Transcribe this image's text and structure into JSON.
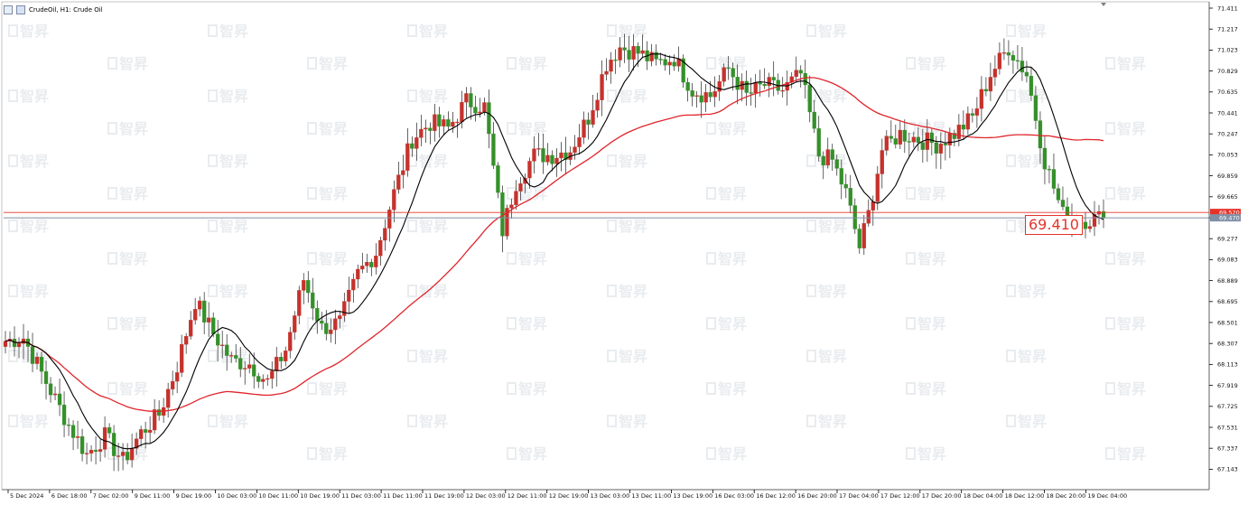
{
  "header": {
    "title": "CrudeOil, H1:  Crude Oil",
    "icons": [
      "chart-grid-icon",
      "chart-settings-icon"
    ]
  },
  "watermark": {
    "text": "智昇",
    "color": "#e9ecef"
  },
  "callout": {
    "text": "69.410",
    "color": "#e5332a"
  },
  "price_labels": {
    "ask": {
      "text": "69.520",
      "value": 69.52,
      "color": "#e5332a"
    },
    "bid": {
      "text": "69.470",
      "value": 69.47,
      "color": "#7f8fa6"
    }
  },
  "colors": {
    "bull": "#c5322c",
    "bear": "#35902a",
    "ma_fast": "#000000",
    "ma_slow": "#e0252c",
    "axis": "#000000"
  },
  "chart_data": {
    "type": "candlestick",
    "symbol": "CrudeOil",
    "timeframe": "H1",
    "y_ticks": [
      "71.411",
      "71.217",
      "71.023",
      "70.829",
      "70.635",
      "70.441",
      "70.247",
      "70.053",
      "69.859",
      "69.665",
      "69.471",
      "69.277",
      "69.083",
      "68.889",
      "68.695",
      "68.501",
      "68.307",
      "68.113",
      "67.919",
      "67.725",
      "67.531",
      "67.337",
      "67.143"
    ],
    "ylim": [
      67.09,
      71.45
    ],
    "x_labels": [
      "5 Dec 2024",
      "6 Dec 18:00",
      "7 Dec 02:00",
      "9 Dec 11:00",
      "9 Dec 19:00",
      "10 Dec 03:00",
      "10 Dec 11:00",
      "10 Dec 19:00",
      "11 Dec 03:00",
      "11 Dec 11:00",
      "11 Dec 19:00",
      "12 Dec 03:00",
      "12 Dec 11:00",
      "12 Dec 19:00",
      "13 Dec 03:00",
      "13 Dec 11:00",
      "13 Dec 19:00",
      "16 Dec 03:00",
      "16 Dec 12:00",
      "16 Dec 20:00",
      "17 Dec 04:00",
      "17 Dec 12:00",
      "17 Dec 20:00",
      "18 Dec 04:00",
      "18 Dec 12:00",
      "18 Dec 20:00",
      "19 Dec 04:00"
    ],
    "candle_count": 244,
    "close_anchors": [
      {
        "bar": 0,
        "close": 68.33
      },
      {
        "bar": 4,
        "close": 68.36
      },
      {
        "bar": 9,
        "close": 67.95
      },
      {
        "bar": 14,
        "close": 67.55
      },
      {
        "bar": 18,
        "close": 67.28
      },
      {
        "bar": 22,
        "close": 67.45
      },
      {
        "bar": 26,
        "close": 67.22
      },
      {
        "bar": 30,
        "close": 67.48
      },
      {
        "bar": 34,
        "close": 67.65
      },
      {
        "bar": 38,
        "close": 68.1
      },
      {
        "bar": 42,
        "close": 68.7
      },
      {
        "bar": 46,
        "close": 68.4
      },
      {
        "bar": 50,
        "close": 68.15
      },
      {
        "bar": 54,
        "close": 68.12
      },
      {
        "bar": 58,
        "close": 67.95
      },
      {
        "bar": 62,
        "close": 68.25
      },
      {
        "bar": 66,
        "close": 68.9
      },
      {
        "bar": 70,
        "close": 68.45
      },
      {
        "bar": 74,
        "close": 68.5
      },
      {
        "bar": 78,
        "close": 68.95
      },
      {
        "bar": 82,
        "close": 69.15
      },
      {
        "bar": 86,
        "close": 69.7
      },
      {
        "bar": 90,
        "close": 70.2
      },
      {
        "bar": 94,
        "close": 70.35
      },
      {
        "bar": 98,
        "close": 70.3
      },
      {
        "bar": 102,
        "close": 70.55
      },
      {
        "bar": 106,
        "close": 70.5
      },
      {
        "bar": 110,
        "close": 69.35
      },
      {
        "bar": 113,
        "close": 69.8
      },
      {
        "bar": 117,
        "close": 70.05
      },
      {
        "bar": 121,
        "close": 70.05
      },
      {
        "bar": 125,
        "close": 70.1
      },
      {
        "bar": 129,
        "close": 70.4
      },
      {
        "bar": 133,
        "close": 70.9
      },
      {
        "bar": 136,
        "close": 71.05
      },
      {
        "bar": 140,
        "close": 71.0
      },
      {
        "bar": 144,
        "close": 70.9
      },
      {
        "bar": 148,
        "close": 70.95
      },
      {
        "bar": 152,
        "close": 70.65
      },
      {
        "bar": 156,
        "close": 70.6
      },
      {
        "bar": 160,
        "close": 70.85
      },
      {
        "bar": 164,
        "close": 70.6
      },
      {
        "bar": 168,
        "close": 70.7
      },
      {
        "bar": 172,
        "close": 70.65
      },
      {
        "bar": 176,
        "close": 70.8
      },
      {
        "bar": 180,
        "close": 70.05
      },
      {
        "bar": 183,
        "close": 70.0
      },
      {
        "bar": 186,
        "close": 69.7
      },
      {
        "bar": 189,
        "close": 69.2
      },
      {
        "bar": 191,
        "close": 69.5
      },
      {
        "bar": 194,
        "close": 70.1
      },
      {
        "bar": 198,
        "close": 70.25
      },
      {
        "bar": 202,
        "close": 70.2
      },
      {
        "bar": 206,
        "close": 70.15
      },
      {
        "bar": 210,
        "close": 70.25
      },
      {
        "bar": 214,
        "close": 70.4
      },
      {
        "bar": 218,
        "close": 70.8
      },
      {
        "bar": 222,
        "close": 71.05
      },
      {
        "bar": 226,
        "close": 70.8
      },
      {
        "bar": 230,
        "close": 70.0
      },
      {
        "bar": 234,
        "close": 69.5
      },
      {
        "bar": 238,
        "close": 69.45
      },
      {
        "bar": 243,
        "close": 69.47
      }
    ],
    "ma_fast_period": 10,
    "ma_slow_period": 50,
    "last_price": 69.41
  }
}
